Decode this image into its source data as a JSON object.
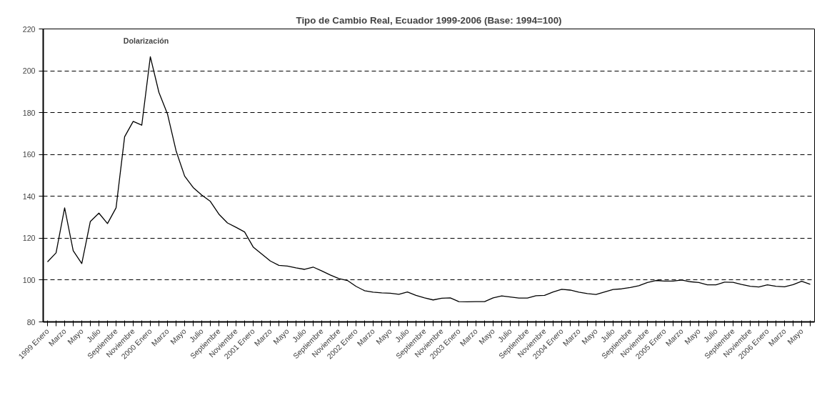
{
  "chart_data": {
    "type": "line",
    "title": "Tipo de Cambio Real, Ecuador 1999-2006 (Base: 1994=100)",
    "categories": [
      "1999 Enero",
      null,
      "Marzo",
      null,
      "Mayo",
      null,
      "Julio",
      null,
      "Septiembre",
      null,
      "Noviembre",
      null,
      "2000 Enero",
      null,
      "Marzo",
      null,
      "Mayo",
      null,
      "Julio",
      null,
      "Septiembre",
      null,
      "Noviembre",
      null,
      "2001 Enero",
      null,
      "Marzo",
      null,
      "Mayo",
      null,
      "Julio",
      null,
      "Septiembre",
      null,
      "Noviembre",
      null,
      "2002 Enero",
      null,
      "Marzo",
      null,
      "Mayo",
      null,
      "Julio",
      null,
      "Septiembre",
      null,
      "Noviembre",
      null,
      "2003 Enero",
      null,
      "Marzo",
      null,
      "Mayo",
      null,
      "Julio",
      null,
      "Septiembre",
      null,
      "Noviembre",
      null,
      "2004 Enero",
      null,
      "Marzo",
      null,
      "Mayo",
      null,
      "Julio",
      null,
      "Septiembre",
      null,
      "Noviembre",
      null,
      "2005 Enero",
      null,
      "Marzo",
      null,
      "Mayo",
      null,
      "Julio",
      null,
      "Septiembre",
      null,
      "Noviembre",
      null,
      "2006 Enero",
      null,
      "Marzo",
      null,
      "Mayo",
      null
    ],
    "series": [
      {
        "color": "#000000",
        "values": [
          108.7,
          113,
          134.5,
          114,
          107.9,
          128,
          132,
          127,
          134.5,
          168.5,
          175.8,
          174,
          206.7,
          189.7,
          179.4,
          161.8,
          149.7,
          144.2,
          140.6,
          137.6,
          131.5,
          127.3,
          125.2,
          123,
          115.8,
          112.4,
          109.1,
          107,
          106.7,
          105.8,
          105.1,
          106.2,
          104.4,
          102.4,
          100.7,
          99.8,
          97,
          94.9,
          94.2,
          93.9,
          93.7,
          93.2,
          94.3,
          92.7,
          91.5,
          90.5,
          91.3,
          91.5,
          89.7,
          89.6,
          89.7,
          89.7,
          91.5,
          92.4,
          91.9,
          91.4,
          91.4,
          92.5,
          92.7,
          94.3,
          95.6,
          95.2,
          94.2,
          93.5,
          93.1,
          94.3,
          95.5,
          95.8,
          96.4,
          97.3,
          98.8,
          99.8,
          99.5,
          99.5,
          100,
          99.2,
          98.8,
          97.7,
          97.7,
          99,
          98.9,
          97.9,
          97,
          96.7,
          97.7,
          97,
          96.8,
          97.8,
          99.4,
          98
        ]
      }
    ],
    "ylim": [
      80,
      220
    ],
    "yticks": [
      80,
      100,
      120,
      140,
      160,
      180,
      200,
      220
    ],
    "grid": "y",
    "marker": "none",
    "line_style": "solid",
    "annotations": [
      "Dolarización"
    ]
  }
}
